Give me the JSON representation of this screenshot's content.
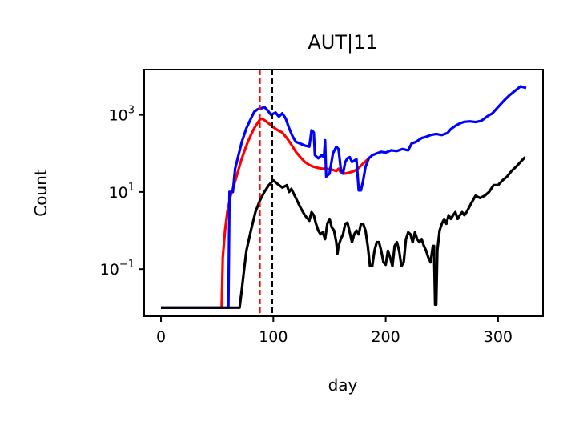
{
  "chart_data": {
    "type": "line",
    "title": "AUT|11",
    "xlabel": "day",
    "ylabel": "Count",
    "yscale": "log",
    "xlim": [
      -15,
      340
    ],
    "ylim": [
      0.006,
      15000
    ],
    "xticks": [
      0,
      100,
      200,
      300
    ],
    "xtick_labels": [
      "0",
      "100",
      "200",
      "300"
    ],
    "yticks": [
      0.1,
      10,
      1000
    ],
    "ytick_labels": [
      {
        "base": "10",
        "exp": "−1"
      },
      {
        "base": "10",
        "exp": "1"
      },
      {
        "base": "10",
        "exp": "3"
      }
    ],
    "grid": false,
    "legend": false,
    "vlines": [
      {
        "x": 88,
        "color": "#ff0000",
        "style": "dashed"
      },
      {
        "x": 99,
        "color": "#000000",
        "style": "dashed"
      }
    ],
    "series": [
      {
        "color": "#ff0000",
        "points": [
          [
            0,
            0.01
          ],
          [
            54,
            0.01
          ],
          [
            55,
            0.2
          ],
          [
            57,
            1
          ],
          [
            59,
            3
          ],
          [
            62,
            8
          ],
          [
            65,
            15
          ],
          [
            68,
            30
          ],
          [
            71,
            60
          ],
          [
            74,
            110
          ],
          [
            77,
            190
          ],
          [
            80,
            300
          ],
          [
            83,
            450
          ],
          [
            86,
            620
          ],
          [
            88,
            750
          ],
          [
            90,
            800
          ],
          [
            93,
            700
          ],
          [
            96,
            600
          ],
          [
            100,
            480
          ],
          [
            104,
            400
          ],
          [
            108,
            350
          ],
          [
            112,
            250
          ],
          [
            116,
            170
          ],
          [
            120,
            110
          ],
          [
            124,
            80
          ],
          [
            128,
            60
          ],
          [
            132,
            50
          ],
          [
            136,
            45
          ],
          [
            140,
            42
          ],
          [
            144,
            40
          ],
          [
            148,
            40
          ],
          [
            152,
            38
          ],
          [
            156,
            35
          ],
          [
            158,
            40
          ],
          [
            160,
            32
          ],
          [
            164,
            30
          ],
          [
            168,
            32
          ],
          [
            172,
            35
          ],
          [
            176,
            42
          ],
          [
            180,
            55
          ],
          [
            184,
            70
          ],
          [
            186,
            80
          ]
        ]
      },
      {
        "color": "#0000ff",
        "points": [
          [
            0,
            0.01
          ],
          [
            60,
            0.01
          ],
          [
            61,
            10
          ],
          [
            64,
            10
          ],
          [
            66,
            40
          ],
          [
            69,
            90
          ],
          [
            72,
            200
          ],
          [
            76,
            450
          ],
          [
            80,
            800
          ],
          [
            83,
            1200
          ],
          [
            86,
            1400
          ],
          [
            90,
            1500
          ],
          [
            92,
            1600
          ],
          [
            95,
            1300
          ],
          [
            98,
            1000
          ],
          [
            102,
            1150
          ],
          [
            105,
            900
          ],
          [
            108,
            1100
          ],
          [
            111,
            800
          ],
          [
            114,
            450
          ],
          [
            117,
            280
          ],
          [
            120,
            200
          ],
          [
            124,
            180
          ],
          [
            128,
            160
          ],
          [
            132,
            150
          ],
          [
            134,
            400
          ],
          [
            136,
            350
          ],
          [
            137,
            90
          ],
          [
            140,
            75
          ],
          [
            143,
            90
          ],
          [
            145,
            80
          ],
          [
            146,
            220
          ],
          [
            147,
            25
          ],
          [
            150,
            30
          ],
          [
            153,
            100
          ],
          [
            156,
            150
          ],
          [
            158,
            130
          ],
          [
            160,
            40
          ],
          [
            162,
            30
          ],
          [
            164,
            60
          ],
          [
            166,
            75
          ],
          [
            168,
            80
          ],
          [
            170,
            60
          ],
          [
            172,
            65
          ],
          [
            174,
            70
          ],
          [
            176,
            11
          ],
          [
            178,
            11
          ],
          [
            180,
            20
          ],
          [
            182,
            45
          ],
          [
            185,
            75
          ],
          [
            188,
            90
          ],
          [
            192,
            100
          ],
          [
            196,
            110
          ],
          [
            200,
            105
          ],
          [
            205,
            120
          ],
          [
            210,
            115
          ],
          [
            215,
            130
          ],
          [
            220,
            120
          ],
          [
            223,
            180
          ],
          [
            227,
            200
          ],
          [
            232,
            250
          ],
          [
            236,
            270
          ],
          [
            240,
            300
          ],
          [
            245,
            320
          ],
          [
            250,
            300
          ],
          [
            255,
            340
          ],
          [
            258,
            430
          ],
          [
            262,
            520
          ],
          [
            266,
            600
          ],
          [
            270,
            660
          ],
          [
            275,
            680
          ],
          [
            280,
            650
          ],
          [
            285,
            700
          ],
          [
            290,
            900
          ],
          [
            295,
            1100
          ],
          [
            300,
            1600
          ],
          [
            305,
            2300
          ],
          [
            310,
            3200
          ],
          [
            315,
            4200
          ],
          [
            320,
            5500
          ],
          [
            325,
            5000
          ]
        ]
      },
      {
        "color": "#000000",
        "points": [
          [
            0,
            0.01
          ],
          [
            68,
            0.01
          ],
          [
            70,
            0.01
          ],
          [
            72,
            0.03
          ],
          [
            74,
            0.1
          ],
          [
            76,
            0.3
          ],
          [
            80,
            1
          ],
          [
            84,
            3
          ],
          [
            88,
            6
          ],
          [
            92,
            10
          ],
          [
            96,
            15
          ],
          [
            100,
            20
          ],
          [
            104,
            16
          ],
          [
            108,
            13
          ],
          [
            112,
            15
          ],
          [
            114,
            10
          ],
          [
            116,
            12
          ],
          [
            120,
            7
          ],
          [
            124,
            4
          ],
          [
            128,
            2.5
          ],
          [
            132,
            1.8
          ],
          [
            134,
            3
          ],
          [
            136,
            2.5
          ],
          [
            138,
            1.5
          ],
          [
            140,
            1.0
          ],
          [
            142,
            0.8
          ],
          [
            144,
            0.9
          ],
          [
            146,
            0.6
          ],
          [
            148,
            1.5
          ],
          [
            150,
            2
          ],
          [
            152,
            1.2
          ],
          [
            154,
            1.0
          ],
          [
            156,
            0.5
          ],
          [
            157,
            0.25
          ],
          [
            158,
            0.4
          ],
          [
            160,
            0.6
          ],
          [
            162,
            0.8
          ],
          [
            164,
            1.5
          ],
          [
            166,
            1.6
          ],
          [
            168,
            0.9
          ],
          [
            170,
            0.5
          ],
          [
            172,
            0.8
          ],
          [
            174,
            1.0
          ],
          [
            176,
            0.8
          ],
          [
            178,
            1.5
          ],
          [
            180,
            1.5
          ],
          [
            182,
            1.0
          ],
          [
            184,
            0.4
          ],
          [
            186,
            0.12
          ],
          [
            188,
            0.12
          ],
          [
            190,
            0.3
          ],
          [
            192,
            0.5
          ],
          [
            194,
            0.5
          ],
          [
            196,
            0.3
          ],
          [
            198,
            0.15
          ],
          [
            200,
            0.13
          ],
          [
            202,
            0.3
          ],
          [
            204,
            0.2
          ],
          [
            206,
            0.12
          ],
          [
            208,
            0.4
          ],
          [
            210,
            0.5
          ],
          [
            212,
            0.3
          ],
          [
            214,
            0.12
          ],
          [
            216,
            0.15
          ],
          [
            218,
            0.6
          ],
          [
            220,
            0.9
          ],
          [
            222,
            0.8
          ],
          [
            224,
            0.5
          ],
          [
            226,
            0.9
          ],
          [
            228,
            0.6
          ],
          [
            230,
            0.5
          ],
          [
            232,
            0.6
          ],
          [
            234,
            0.4
          ],
          [
            236,
            0.3
          ],
          [
            238,
            0.2
          ],
          [
            240,
            0.15
          ],
          [
            242,
            0.4
          ],
          [
            243,
            0.4
          ],
          [
            244,
            0.012
          ],
          [
            245,
            0.012
          ],
          [
            246,
            0.3
          ],
          [
            248,
            1.0
          ],
          [
            250,
            1.5
          ],
          [
            252,
            2.0
          ],
          [
            254,
            1.5
          ],
          [
            256,
            2.5
          ],
          [
            258,
            2.0
          ],
          [
            260,
            2.5
          ],
          [
            262,
            3.0
          ],
          [
            264,
            2.0
          ],
          [
            266,
            2.5
          ],
          [
            268,
            3.0
          ],
          [
            270,
            2.5
          ],
          [
            272,
            3.0
          ],
          [
            276,
            5
          ],
          [
            280,
            8
          ],
          [
            284,
            7
          ],
          [
            288,
            8
          ],
          [
            292,
            10
          ],
          [
            296,
            15
          ],
          [
            300,
            15
          ],
          [
            304,
            20
          ],
          [
            308,
            25
          ],
          [
            312,
            35
          ],
          [
            316,
            45
          ],
          [
            320,
            60
          ],
          [
            324,
            80
          ]
        ]
      }
    ]
  }
}
